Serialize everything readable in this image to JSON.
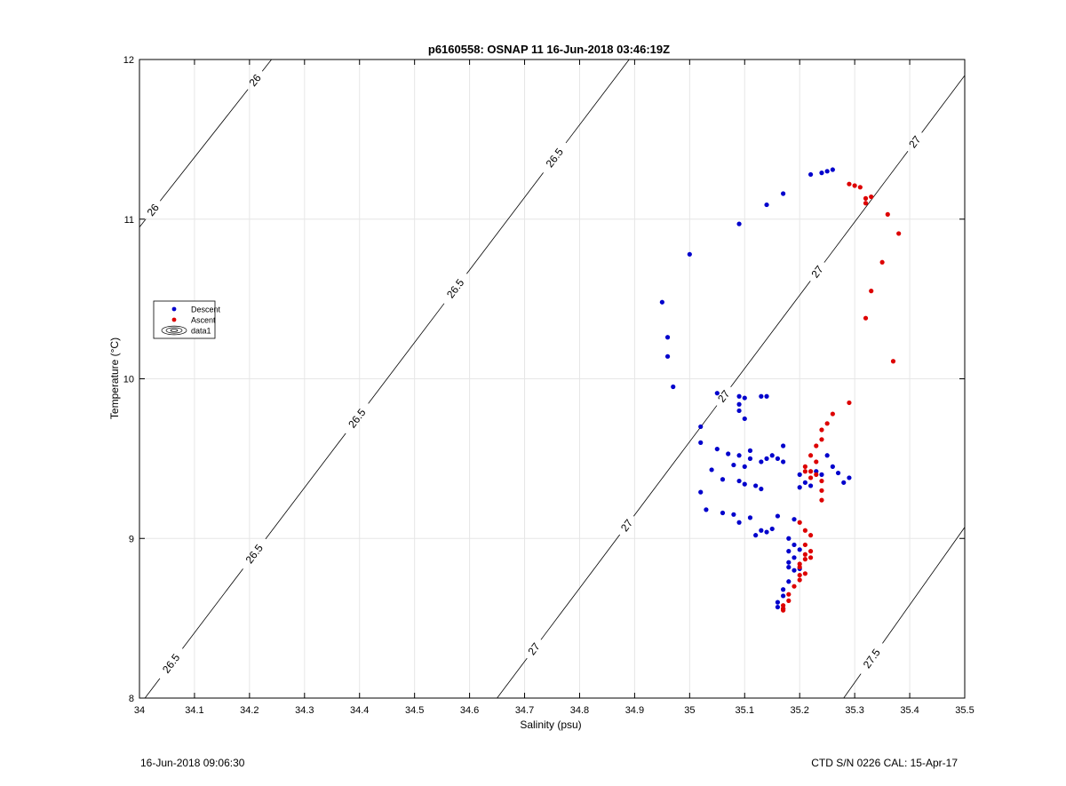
{
  "footer": {
    "timestamp": "16-Jun-2018 09:06:30",
    "instrument": "CTD S/N 0226  CAL: 15-Apr-17"
  },
  "chart_data": {
    "type": "scatter",
    "title": "p6160558: OSNAP 11 16-Jun-2018 03:46:19Z",
    "xlabel": "Salinity (psu)",
    "ylabel": "Temperature (°C)",
    "xlim": [
      34,
      35.5
    ],
    "ylim": [
      8,
      12
    ],
    "xticks": [
      34,
      34.1,
      34.2,
      34.3,
      34.4,
      34.5,
      34.6,
      34.7,
      34.8,
      34.9,
      35,
      35.1,
      35.2,
      35.3,
      35.4,
      35.5
    ],
    "xtick_labels": [
      "34",
      "34.1",
      "34.2",
      "34.3",
      "34.4",
      "34.5",
      "34.6",
      "34.7",
      "34.8",
      "34.9",
      "35",
      "35.1",
      "35.2",
      "35.3",
      "35.4",
      "35.5"
    ],
    "yticks": [
      8,
      9,
      10,
      11,
      12
    ],
    "ytick_labels": [
      "8",
      "9",
      "10",
      "11",
      "12"
    ],
    "grid": true,
    "legend_position": "left",
    "legend": [
      {
        "label": "Descent",
        "color": "#0000cc",
        "marker": "dot"
      },
      {
        "label": "Ascent",
        "color": "#dd0000",
        "marker": "dot"
      },
      {
        "label": "data1",
        "color": "#000000",
        "marker": "contour"
      }
    ],
    "contours": [
      {
        "label": "26",
        "points": [
          [
            34.0,
            10.95
          ],
          [
            34.24,
            12.0
          ]
        ],
        "labels_at": [
          [
            34.02,
            11.07
          ],
          [
            34.21,
            11.87
          ]
        ]
      },
      {
        "label": "26.5",
        "points": [
          [
            34.01,
            8.0
          ],
          [
            34.89,
            12.0
          ]
        ],
        "labels_at": [
          [
            34.06,
            8.21
          ],
          [
            34.21,
            8.9
          ],
          [
            34.4,
            9.74
          ],
          [
            34.58,
            10.55
          ],
          [
            34.76,
            11.37
          ]
        ]
      },
      {
        "label": "27",
        "points": [
          [
            34.65,
            8.0
          ],
          [
            35.5,
            11.9
          ]
        ],
        "labels_at": [
          [
            34.72,
            8.3
          ],
          [
            34.89,
            9.07
          ],
          [
            35.07,
            9.87
          ],
          [
            35.24,
            10.65
          ],
          [
            35.43,
            11.43
          ]
        ]
      },
      {
        "label": "27.5",
        "points": [
          [
            35.28,
            8.0
          ],
          [
            35.5,
            9.07
          ]
        ],
        "labels_at": [
          [
            35.33,
            8.25
          ]
        ]
      }
    ],
    "series": [
      {
        "name": "Descent",
        "color": "#0000cc",
        "points": [
          [
            35.26,
            11.31
          ],
          [
            35.25,
            11.3
          ],
          [
            35.24,
            11.29
          ],
          [
            35.22,
            11.28
          ],
          [
            35.17,
            11.16
          ],
          [
            35.14,
            11.09
          ],
          [
            35.09,
            10.97
          ],
          [
            35.0,
            10.78
          ],
          [
            34.95,
            10.48
          ],
          [
            34.96,
            10.26
          ],
          [
            34.96,
            10.14
          ],
          [
            34.97,
            9.95
          ],
          [
            35.05,
            9.91
          ],
          [
            35.09,
            9.89
          ],
          [
            35.1,
            9.88
          ],
          [
            35.13,
            9.89
          ],
          [
            35.14,
            9.89
          ],
          [
            35.09,
            9.84
          ],
          [
            35.09,
            9.8
          ],
          [
            35.1,
            9.75
          ],
          [
            35.02,
            9.7
          ],
          [
            35.02,
            9.6
          ],
          [
            35.05,
            9.56
          ],
          [
            35.07,
            9.53
          ],
          [
            35.09,
            9.52
          ],
          [
            35.11,
            9.55
          ],
          [
            35.11,
            9.5
          ],
          [
            35.13,
            9.48
          ],
          [
            35.14,
            9.5
          ],
          [
            35.15,
            9.52
          ],
          [
            35.16,
            9.5
          ],
          [
            35.17,
            9.48
          ],
          [
            35.17,
            9.58
          ],
          [
            35.08,
            9.46
          ],
          [
            35.1,
            9.45
          ],
          [
            35.04,
            9.43
          ],
          [
            35.06,
            9.37
          ],
          [
            35.09,
            9.36
          ],
          [
            35.1,
            9.34
          ],
          [
            35.12,
            9.33
          ],
          [
            35.13,
            9.31
          ],
          [
            35.02,
            9.29
          ],
          [
            35.03,
            9.18
          ],
          [
            35.06,
            9.16
          ],
          [
            35.08,
            9.15
          ],
          [
            35.09,
            9.1
          ],
          [
            35.11,
            9.13
          ],
          [
            35.12,
            9.02
          ],
          [
            35.13,
            9.05
          ],
          [
            35.14,
            9.04
          ],
          [
            35.15,
            9.06
          ],
          [
            35.16,
            9.14
          ],
          [
            35.2,
            9.4
          ],
          [
            35.21,
            9.35
          ],
          [
            35.22,
            9.33
          ],
          [
            35.23,
            9.42
          ],
          [
            35.24,
            9.4
          ],
          [
            35.25,
            9.52
          ],
          [
            35.26,
            9.45
          ],
          [
            35.27,
            9.41
          ],
          [
            35.28,
            9.35
          ],
          [
            35.29,
            9.38
          ],
          [
            35.2,
            9.32
          ],
          [
            35.19,
            9.12
          ],
          [
            35.18,
            9.0
          ],
          [
            35.19,
            8.96
          ],
          [
            35.18,
            8.92
          ],
          [
            35.2,
            8.93
          ],
          [
            35.19,
            8.88
          ],
          [
            35.18,
            8.85
          ],
          [
            35.18,
            8.82
          ],
          [
            35.19,
            8.8
          ],
          [
            35.2,
            8.81
          ],
          [
            35.18,
            8.73
          ],
          [
            35.17,
            8.68
          ],
          [
            35.17,
            8.64
          ],
          [
            35.16,
            8.6
          ],
          [
            35.16,
            8.57
          ],
          [
            35.17,
            8.56
          ]
        ]
      },
      {
        "name": "Ascent",
        "color": "#dd0000",
        "points": [
          [
            35.29,
            11.22
          ],
          [
            35.3,
            11.21
          ],
          [
            35.31,
            11.2
          ],
          [
            35.32,
            11.13
          ],
          [
            35.33,
            11.14
          ],
          [
            35.32,
            11.1
          ],
          [
            35.36,
            11.03
          ],
          [
            35.38,
            10.91
          ],
          [
            35.35,
            10.73
          ],
          [
            35.33,
            10.55
          ],
          [
            35.32,
            10.38
          ],
          [
            35.37,
            10.11
          ],
          [
            35.29,
            9.85
          ],
          [
            35.26,
            9.78
          ],
          [
            35.25,
            9.72
          ],
          [
            35.24,
            9.68
          ],
          [
            35.24,
            9.62
          ],
          [
            35.23,
            9.58
          ],
          [
            35.22,
            9.52
          ],
          [
            35.23,
            9.48
          ],
          [
            35.21,
            9.45
          ],
          [
            35.22,
            9.42
          ],
          [
            35.23,
            9.4
          ],
          [
            35.24,
            9.36
          ],
          [
            35.24,
            9.3
          ],
          [
            35.24,
            9.24
          ],
          [
            35.22,
            9.38
          ],
          [
            35.21,
            9.42
          ],
          [
            35.2,
            9.1
          ],
          [
            35.21,
            9.05
          ],
          [
            35.22,
            9.02
          ],
          [
            35.21,
            8.96
          ],
          [
            35.22,
            8.92
          ],
          [
            35.21,
            8.87
          ],
          [
            35.2,
            8.82
          ],
          [
            35.21,
            8.78
          ],
          [
            35.2,
            8.74
          ],
          [
            35.19,
            8.7
          ],
          [
            35.18,
            8.65
          ],
          [
            35.18,
            8.61
          ],
          [
            35.17,
            8.58
          ],
          [
            35.17,
            8.56
          ],
          [
            35.17,
            8.55
          ],
          [
            35.2,
            8.84
          ],
          [
            35.22,
            8.88
          ],
          [
            35.21,
            8.9
          ],
          [
            35.2,
            8.77
          ]
        ]
      }
    ]
  }
}
